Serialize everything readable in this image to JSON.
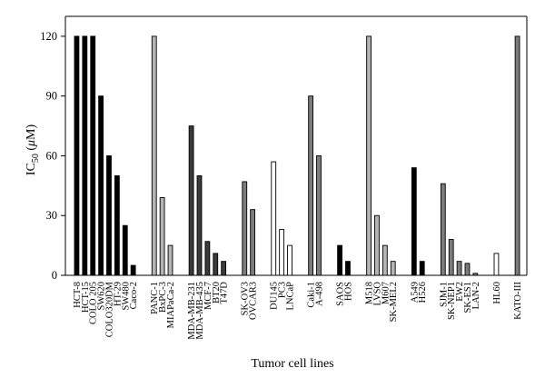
{
  "chart_data": {
    "type": "bar",
    "xlabel": "Tumor cell lines",
    "ylabel_main": "IC",
    "ylabel_sub": "50",
    "ylabel_open": " (",
    "ylabel_mu": "μ",
    "ylabel_unit": "M)",
    "ylim": [
      0,
      130
    ],
    "yticks": [
      "0",
      "30",
      "60",
      "90",
      "120"
    ],
    "grid": false,
    "legend": "none",
    "fill_key": {
      "b": "#000000",
      "d": "#3a3a3a",
      "l": "#b4b4b4",
      "m": "#7c7c7c",
      "w": "#ffffff"
    },
    "groups": [
      {
        "bars": [
          {
            "label": "HCT-8",
            "value": 120,
            "fill": "b"
          },
          {
            "label": "HCT-15",
            "value": 120,
            "fill": "b"
          },
          {
            "label": "COLO 205",
            "value": 120,
            "fill": "b"
          },
          {
            "label": "SW620",
            "value": 90,
            "fill": "b"
          },
          {
            "label": "COLO320DM",
            "value": 60,
            "fill": "b"
          },
          {
            "label": "HT-29",
            "value": 50,
            "fill": "b"
          },
          {
            "label": "SW480",
            "value": 25,
            "fill": "b"
          },
          {
            "label": "Caco-2",
            "value": 5,
            "fill": "b"
          }
        ]
      },
      {
        "bars": [
          {
            "label": "PANC-1",
            "value": 120,
            "fill": "l"
          },
          {
            "label": "BxPC-3",
            "value": 39,
            "fill": "l"
          },
          {
            "label": "MIAPaCa-2",
            "value": 15,
            "fill": "l"
          }
        ]
      },
      {
        "bars": [
          {
            "label": "MDA-MB-231",
            "value": 75,
            "fill": "d"
          },
          {
            "label": "MDA-MB-435",
            "value": 50,
            "fill": "d"
          },
          {
            "label": "MCF-7",
            "value": 17,
            "fill": "d"
          },
          {
            "label": "BT20",
            "value": 11,
            "fill": "d"
          },
          {
            "label": "T47D",
            "value": 7,
            "fill": "d"
          }
        ]
      },
      {
        "bars": [
          {
            "label": "SK-OV3",
            "value": 47,
            "fill": "m"
          },
          {
            "label": "OVCAR3",
            "value": 33,
            "fill": "m"
          }
        ]
      },
      {
        "bars": [
          {
            "label": "DU145",
            "value": 57,
            "fill": "w"
          },
          {
            "label": "PC3",
            "value": 23,
            "fill": "w"
          },
          {
            "label": "LNCaP",
            "value": 15,
            "fill": "w"
          }
        ]
      },
      {
        "bars": [
          {
            "label": "Caki-1",
            "value": 90,
            "fill": "m"
          },
          {
            "label": "A-498",
            "value": 60,
            "fill": "m"
          }
        ]
      },
      {
        "bars": [
          {
            "label": "SAOS",
            "value": 15,
            "fill": "b"
          },
          {
            "label": "HOS",
            "value": 7,
            "fill": "b"
          }
        ]
      },
      {
        "bars": [
          {
            "label": "M518",
            "value": 120,
            "fill": "l"
          },
          {
            "label": "LVSO",
            "value": 30,
            "fill": "l"
          },
          {
            "label": "M607",
            "value": 15,
            "fill": "l"
          },
          {
            "label": "SK-MEL2",
            "value": 7,
            "fill": "l"
          }
        ]
      },
      {
        "bars": [
          {
            "label": "A549",
            "value": 54,
            "fill": "b"
          },
          {
            "label": "H526",
            "value": 7,
            "fill": "b"
          }
        ]
      },
      {
        "bars": [
          {
            "label": "SJM-1",
            "value": 46,
            "fill": "m"
          },
          {
            "label": "SK-NEP1",
            "value": 18,
            "fill": "m"
          },
          {
            "label": "EW2",
            "value": 7,
            "fill": "m"
          },
          {
            "label": "SK-ES1",
            "value": 6,
            "fill": "m"
          },
          {
            "label": "LAN-2",
            "value": 1,
            "fill": "m"
          }
        ]
      },
      {
        "bars": [
          {
            "label": "HL60",
            "value": 11,
            "fill": "w"
          }
        ]
      },
      {
        "bars": [
          {
            "label": "KATO-III",
            "value": 120,
            "fill": "m"
          }
        ]
      }
    ]
  }
}
